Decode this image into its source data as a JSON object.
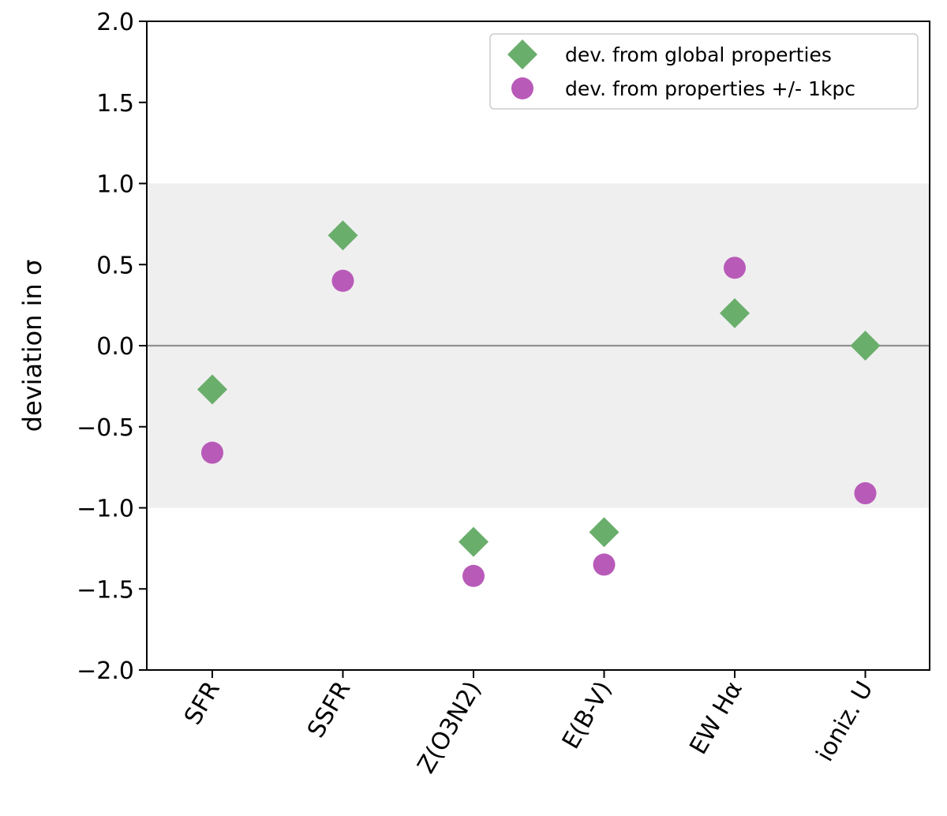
{
  "chart_data": {
    "type": "scatter",
    "title": "",
    "xlabel": "",
    "ylabel": "deviation in σ",
    "ylim": [
      -2.0,
      2.0
    ],
    "yticks": [
      -2.0,
      -1.5,
      -1.0,
      -0.5,
      0.0,
      0.5,
      1.0,
      1.5,
      2.0
    ],
    "ytick_labels": [
      "−2.0",
      "−1.5",
      "−1.0",
      "−0.5",
      "0.0",
      "0.5",
      "1.0",
      "1.5",
      "2.0"
    ],
    "categories": [
      "SFR",
      "SSFR",
      "Z(O3N2)",
      "E(B-V)",
      "EW Hα",
      "ioniz. U"
    ],
    "shaded_band": [
      -1.0,
      1.0
    ],
    "reference_line": 0.0,
    "grid": false,
    "legend_position": "top-right",
    "series": [
      {
        "name": "dev. from global properties",
        "marker": "diamond",
        "color": "#6aae6c",
        "values": [
          -0.27,
          0.68,
          -1.21,
          -1.15,
          0.2,
          0.0
        ]
      },
      {
        "name": "dev. from properties +/- 1kpc",
        "marker": "circle",
        "color": "#b85ab8",
        "values": [
          -0.66,
          0.4,
          -1.42,
          -1.35,
          0.48,
          -0.91
        ]
      }
    ],
    "colors": {
      "band": "#efefef",
      "reference_line": "#909090"
    }
  }
}
